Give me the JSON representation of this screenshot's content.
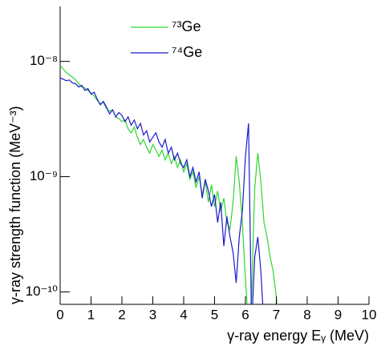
{
  "chart_data": {
    "type": "line",
    "xlabel": "γ-ray energy Eᵧ (MeV)",
    "ylabel": "γ-ray strength function (MeV⁻³)",
    "xlim": [
      0,
      10
    ],
    "xticks": [
      0,
      1,
      2,
      3,
      4,
      5,
      6,
      7,
      8,
      9,
      10
    ],
    "ylim": [
      7.8e-11,
      3e-08
    ],
    "log_y": true,
    "yticks": [
      {
        "value": 1e-10,
        "label": "10⁻¹⁰"
      },
      {
        "value": 1e-09,
        "label": "10⁻⁹"
      },
      {
        "value": 1e-08,
        "label": "10⁻⁸"
      }
    ],
    "legend": "top",
    "x": [
      0.0,
      0.1,
      0.2,
      0.3,
      0.4,
      0.5,
      0.6,
      0.7,
      0.8,
      0.9,
      1.0,
      1.1,
      1.2,
      1.3,
      1.4,
      1.5,
      1.6,
      1.7,
      1.8,
      1.9,
      2.0,
      2.1,
      2.2,
      2.3,
      2.4,
      2.5,
      2.6,
      2.7,
      2.8,
      2.9,
      3.0,
      3.1,
      3.2,
      3.3,
      3.4,
      3.5,
      3.6,
      3.7,
      3.8,
      3.9,
      4.0,
      4.1,
      4.2,
      4.3,
      4.4,
      4.5,
      4.6,
      4.7,
      4.8,
      4.9,
      5.0,
      5.1,
      5.2,
      5.3,
      5.4,
      5.5,
      5.6,
      5.7,
      5.8,
      5.9,
      6.0,
      6.1,
      6.2,
      6.3,
      6.4,
      6.5,
      6.6,
      6.7,
      6.8,
      6.9,
      7.0,
      7.1
    ],
    "series": [
      {
        "name": "⁷³Ge",
        "color": "#2fd62f",
        "values": [
          9.2e-09,
          8.6e-09,
          8e-09,
          7.6e-09,
          7.3e-09,
          6.9e-09,
          6.4e-09,
          6e-09,
          5.9e-09,
          5.6e-09,
          5.3e-09,
          5e-09,
          4.6e-09,
          4.3e-09,
          4.4e-09,
          3.9e-09,
          3.7e-09,
          3.8e-09,
          3.3e-09,
          3.2e-09,
          3e-09,
          3.1e-09,
          2.6e-09,
          2.4e-09,
          2.7e-09,
          2.2e-09,
          1.9e-09,
          2.1e-09,
          1.8e-09,
          1.6e-09,
          1.9e-09,
          1.7e-09,
          1.5e-09,
          1.7e-09,
          1.4e-09,
          1.6e-09,
          1.3e-09,
          1.5e-09,
          1.2e-09,
          1.4e-09,
          1.1e-09,
          1.3e-09,
          9.5e-10,
          1.1e-09,
          8e-10,
          1e-09,
          7e-10,
          9e-10,
          6e-10,
          8.5e-10,
          5.5e-10,
          7.5e-10,
          5e-10,
          6.5e-10,
          4e-10,
          3.5e-10,
          6e-10,
          1.5e-09,
          9e-10,
          4e-10,
          1.3e-10,
          5e-11,
          9e-11,
          8e-10,
          1.6e-09,
          9e-10,
          4e-10,
          3e-10,
          2e-10,
          1.5e-10,
          9e-11,
          5e-11
        ]
      },
      {
        "name": "⁷⁴Ge",
        "color": "#1a1acc",
        "values": [
          7.2e-09,
          7e-09,
          6.8e-09,
          6.9e-09,
          6.5e-09,
          6.4e-09,
          6e-09,
          6.2e-09,
          5.6e-09,
          5.8e-09,
          5.2e-09,
          5.4e-09,
          4.7e-09,
          4.2e-09,
          4.5e-09,
          4e-09,
          3.5e-09,
          3.8e-09,
          3.3e-09,
          3.6e-09,
          3.4e-09,
          3e-09,
          3.3e-09,
          2.8e-09,
          3.1e-09,
          2.6e-09,
          2.9e-09,
          2.3e-09,
          2.5e-09,
          2e-09,
          2.2e-09,
          2.4e-09,
          2e-09,
          1.8e-09,
          2.1e-09,
          1.6e-09,
          1.8e-09,
          1.4e-09,
          1.6e-09,
          1.3e-09,
          1.2e-09,
          1.4e-09,
          1e-09,
          1.2e-09,
          9e-10,
          1.1e-09,
          6.5e-10,
          9.5e-10,
          7.5e-10,
          5.5e-10,
          7e-10,
          4e-10,
          6e-10,
          2.5e-10,
          4.5e-10,
          3e-10,
          2.2e-10,
          1.2e-10,
          3e-10,
          5e-10,
          1.5e-09,
          2.9e-09,
          5e-11,
          2e-10,
          3e-10,
          1.5e-10,
          5e-11,
          null,
          null,
          null,
          null,
          null
        ]
      }
    ]
  }
}
